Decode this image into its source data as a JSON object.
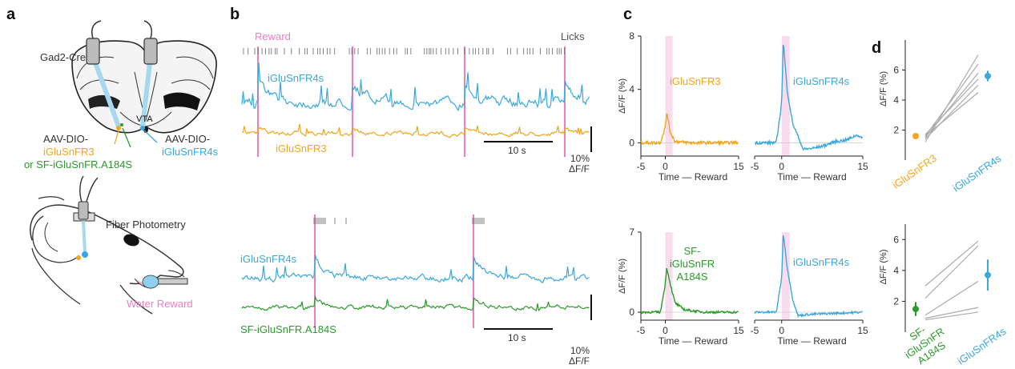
{
  "colors": {
    "fr4s": "#3aa8dc",
    "fr3": "#f2a51d",
    "a184s": "#2a9a2a",
    "reward": "#f07cc4",
    "reward_shade": "#fadcf0",
    "licks": "#666666",
    "grey": "#aaaaaa"
  },
  "panels": {
    "a": "a",
    "b": "b",
    "c": "c",
    "d": "d"
  },
  "panel_a": {
    "mouse_line": "Gad2-Cre",
    "region": "VTA",
    "virus_left_1": "AAV-DIO-",
    "virus_left_2": "iGluSnFR3",
    "virus_left_3": "or SF-iGluSnFR.A184S",
    "virus_right_1": "AAV-DIO-",
    "virus_right_2": "iGluSnFR4s",
    "method": "Fiber Photometry",
    "reward": "Water Reward"
  },
  "panel_b": {
    "reward_label": "Reward",
    "licks_label": "Licks",
    "top_fr4s_label": "iGluSnFR4s",
    "top_fr3_label": "iGluSnFR3",
    "bottom_fr4s_label": "iGluSnFR4s",
    "bottom_a184s_label": "SF-iGluSnFR.A184S",
    "scale_time": "10 s",
    "scale_amp_1": "10%",
    "scale_amp_2": "ΔF/F"
  },
  "chart_data": [
    {
      "id": "c-top-left",
      "type": "line",
      "series": [
        {
          "name": "iGluSnFR3",
          "x": [
            -5,
            -1,
            0,
            0.3,
            1,
            2,
            5,
            10,
            15
          ],
          "y": [
            0,
            0,
            1.2,
            2.3,
            0.8,
            0.1,
            0,
            0,
            0
          ]
        }
      ],
      "xlim": [
        -5,
        15
      ],
      "ylim": [
        -1,
        8
      ],
      "xticks": [
        "-5",
        "0",
        "15"
      ],
      "yticks": [
        "8",
        "4",
        "0"
      ],
      "xlabel": "Time — Reward",
      "ylabel": "ΔF/F (%)",
      "shade": [
        0,
        1.5
      ]
    },
    {
      "id": "c-top-right",
      "type": "line",
      "series": [
        {
          "name": "iGluSnFR4s",
          "x": [
            -5,
            -1,
            0,
            0.3,
            1,
            2,
            4,
            6,
            8,
            10,
            12,
            14,
            15
          ],
          "y": [
            0,
            0,
            3,
            7.6,
            4,
            1.5,
            -0.5,
            -0.4,
            -0.2,
            0.1,
            0.2,
            0.6,
            0.3
          ]
        }
      ],
      "xlim": [
        -5,
        15
      ],
      "ylim": [
        -1,
        8
      ],
      "xticks": [
        "-5",
        "0",
        "15"
      ],
      "yticks": [],
      "xlabel": "Time — Reward",
      "ylabel": "",
      "shade": [
        0,
        1.5
      ]
    },
    {
      "id": "c-bottom-left",
      "type": "line",
      "series": [
        {
          "name": "SF-iGluSnFR A184S",
          "x": [
            -5,
            -1,
            0,
            0.3,
            1,
            2,
            4,
            8,
            15
          ],
          "y": [
            0,
            0,
            2.5,
            3.9,
            2.5,
            0.8,
            0.2,
            0,
            0
          ]
        }
      ],
      "xlim": [
        -5,
        15
      ],
      "ylim": [
        -0.7,
        7
      ],
      "xticks": [
        "-5",
        "0",
        "15"
      ],
      "yticks": [
        "7",
        "0"
      ],
      "xlabel": "Time — Reward",
      "ylabel": "ΔF/F (%)",
      "shade": [
        0,
        1.5
      ]
    },
    {
      "id": "c-bottom-right",
      "type": "line",
      "series": [
        {
          "name": "iGluSnFR4s",
          "x": [
            -5,
            -1,
            0,
            0.3,
            1,
            2,
            3,
            5,
            10,
            15
          ],
          "y": [
            0,
            0,
            3,
            6.9,
            4,
            1.2,
            -0.3,
            -0.2,
            -0.1,
            0
          ]
        }
      ],
      "xlim": [
        -5,
        15
      ],
      "ylim": [
        -0.7,
        7
      ],
      "xticks": [
        "-5",
        "0",
        "15"
      ],
      "yticks": [],
      "xlabel": "Time — Reward",
      "ylabel": "",
      "shade": [
        0,
        1.5
      ]
    },
    {
      "id": "d-top",
      "type": "scatter",
      "categories": [
        "iGluSnFR3",
        "iGluSnFR4s"
      ],
      "paired": [
        [
          1.2,
          7.0
        ],
        [
          1.6,
          6.4
        ],
        [
          1.5,
          5.8
        ],
        [
          1.7,
          5.4
        ],
        [
          1.4,
          5.0
        ],
        [
          1.6,
          4.5
        ]
      ],
      "mean": [
        1.6,
        5.6
      ],
      "err": [
        0.15,
        0.35
      ],
      "ylim": [
        0,
        8
      ],
      "yticks": [
        "6",
        "4",
        "2"
      ],
      "ylabel": "ΔF/F (%)"
    },
    {
      "id": "d-bottom",
      "type": "scatter",
      "categories": [
        "SF-iGluSnFR A184S",
        "iGluSnFR4s"
      ],
      "paired": [
        [
          3.0,
          5.9
        ],
        [
          2.2,
          5.6
        ],
        [
          1.1,
          3.3
        ],
        [
          0.9,
          1.6
        ],
        [
          0.8,
          1.3
        ]
      ],
      "mean": [
        1.5,
        3.7
      ],
      "err": [
        0.45,
        1.0
      ],
      "ylim": [
        0,
        7
      ],
      "yticks": [
        "6",
        "4",
        "2"
      ],
      "ylabel": "ΔF/F (%)"
    }
  ]
}
